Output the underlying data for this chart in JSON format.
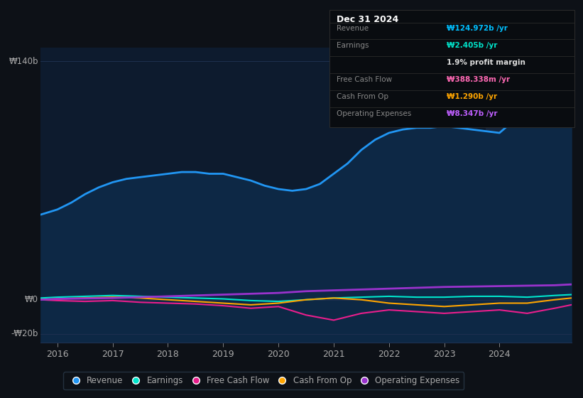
{
  "background_color": "#0d1117",
  "plot_bg_color": "#0d1b2e",
  "highlight_bg_color": "#162840",
  "title": "Dec 31 2024",
  "info_box_title": "Dec 31 2024",
  "info_box": {
    "rows": [
      {
        "label": "Revenue",
        "value": "₩124.972b /yr",
        "value_color": "#00bfff"
      },
      {
        "label": "Earnings",
        "value": "₩2.405b /yr",
        "value_color": "#00e5cc"
      },
      {
        "label": "",
        "value": "1.9% profit margin",
        "value_color": "#dddddd"
      },
      {
        "label": "Free Cash Flow",
        "value": "₩388.338m /yr",
        "value_color": "#ff69b4"
      },
      {
        "label": "Cash From Op",
        "value": "₩1.290b /yr",
        "value_color": "#ffa500"
      },
      {
        "label": "Operating Expenses",
        "value": "₩8.347b /yr",
        "value_color": "#bf5fff"
      }
    ]
  },
  "y_label_top": "₩140b",
  "y_label_zero": "₩0",
  "y_label_bottom": "-₩20b",
  "ylim": [
    -25,
    148
  ],
  "xlim": [
    2015.7,
    2025.3
  ],
  "x_ticks": [
    2016,
    2017,
    2018,
    2019,
    2020,
    2021,
    2022,
    2023,
    2024
  ],
  "series": {
    "revenue": {
      "color": "#2196f3",
      "fill_color": "#0d2845",
      "lw": 2.0,
      "values_x": [
        2015.7,
        2016.0,
        2016.25,
        2016.5,
        2016.75,
        2017.0,
        2017.25,
        2017.5,
        2017.75,
        2018.0,
        2018.25,
        2018.5,
        2018.75,
        2019.0,
        2019.25,
        2019.5,
        2019.75,
        2020.0,
        2020.25,
        2020.5,
        2020.75,
        2021.0,
        2021.25,
        2021.5,
        2021.75,
        2022.0,
        2022.25,
        2022.5,
        2022.75,
        2023.0,
        2023.25,
        2023.5,
        2023.75,
        2024.0,
        2024.25,
        2024.5,
        2024.75,
        2025.0,
        2025.3
      ],
      "values_y": [
        50,
        53,
        57,
        62,
        66,
        69,
        71,
        72,
        73,
        74,
        75,
        75,
        74,
        74,
        72,
        70,
        67,
        65,
        64,
        65,
        68,
        74,
        80,
        88,
        94,
        98,
        100,
        101,
        101,
        102,
        101,
        100,
        99,
        98,
        105,
        112,
        120,
        130,
        140
      ]
    },
    "earnings": {
      "color": "#00e5cc",
      "lw": 1.5,
      "values_x": [
        2015.7,
        2016.0,
        2016.5,
        2017.0,
        2017.5,
        2018.0,
        2018.5,
        2019.0,
        2019.5,
        2020.0,
        2020.5,
        2021.0,
        2021.5,
        2022.0,
        2022.5,
        2023.0,
        2023.5,
        2024.0,
        2024.5,
        2025.0,
        2025.3
      ],
      "values_y": [
        1,
        1.5,
        2,
        2.5,
        2,
        1.5,
        1,
        0.5,
        -0.5,
        -1,
        0,
        1,
        1.5,
        2,
        1.5,
        1.5,
        2,
        2,
        1.5,
        2.5,
        3
      ]
    },
    "free_cash_flow": {
      "color": "#e91e8c",
      "lw": 1.5,
      "values_x": [
        2015.7,
        2016.0,
        2016.5,
        2017.0,
        2017.5,
        2018.0,
        2018.5,
        2019.0,
        2019.5,
        2020.0,
        2020.5,
        2021.0,
        2021.5,
        2022.0,
        2022.5,
        2023.0,
        2023.5,
        2024.0,
        2024.5,
        2025.0,
        2025.3
      ],
      "values_y": [
        0,
        -0.5,
        -1,
        -0.5,
        -1.5,
        -2,
        -2.5,
        -3.5,
        -5,
        -4,
        -9,
        -12,
        -8,
        -6,
        -7,
        -8,
        -7,
        -6,
        -8,
        -5,
        -3
      ]
    },
    "cash_from_op": {
      "color": "#ffa500",
      "lw": 1.5,
      "values_x": [
        2015.7,
        2016.0,
        2016.5,
        2017.0,
        2017.5,
        2018.0,
        2018.5,
        2019.0,
        2019.5,
        2020.0,
        2020.5,
        2021.0,
        2021.5,
        2022.0,
        2022.5,
        2023.0,
        2023.5,
        2024.0,
        2024.5,
        2025.0,
        2025.3
      ],
      "values_y": [
        0,
        0.5,
        1,
        1.5,
        1,
        0,
        -1,
        -2,
        -3,
        -2,
        0,
        1,
        0,
        -2,
        -3,
        -4,
        -3,
        -2,
        -2,
        0,
        1
      ]
    },
    "operating_expenses": {
      "color": "#9932cc",
      "lw": 2.0,
      "values_x": [
        2015.7,
        2016.0,
        2017.0,
        2018.0,
        2019.0,
        2020.0,
        2020.5,
        2021.0,
        2022.0,
        2023.0,
        2024.0,
        2025.0,
        2025.3
      ],
      "values_y": [
        0,
        0.5,
        1,
        2,
        3,
        4,
        5,
        5.5,
        6.5,
        7.5,
        8,
        8.5,
        9
      ]
    }
  },
  "legend": [
    {
      "label": "Revenue",
      "color": "#2196f3"
    },
    {
      "label": "Earnings",
      "color": "#00e5cc"
    },
    {
      "label": "Free Cash Flow",
      "color": "#e91e8c"
    },
    {
      "label": "Cash From Op",
      "color": "#ffa500"
    },
    {
      "label": "Operating Expenses",
      "color": "#9932cc"
    }
  ],
  "highlight_x_start": 2023.75,
  "highlight_x_end": 2025.3,
  "grid_color": "#1e3050",
  "text_color": "#aaaaaa"
}
